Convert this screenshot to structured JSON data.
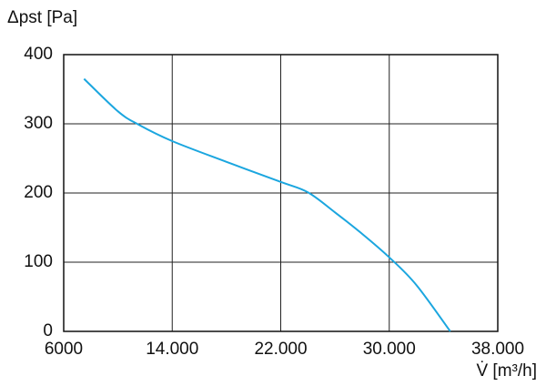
{
  "chart_data": {
    "type": "line",
    "y_label": "Δpst [Pa]",
    "x_label": "V̇ [m³/h]",
    "x": [
      7500,
      10000,
      11500,
      14000,
      18000,
      22000,
      24000,
      26000,
      28000,
      30000,
      32000,
      34500
    ],
    "series": [
      {
        "name": "Δpst",
        "color": "#1ba6df",
        "values": [
          365,
          318,
          299,
          275,
          245,
          216,
          201,
          172,
          141,
          107,
          67,
          0
        ]
      }
    ],
    "xlim": [
      6000,
      38000
    ],
    "xticks": [
      6000,
      {
        "value": 14000,
        "label": "14.000"
      },
      {
        "value": 22000,
        "label": "22.000"
      },
      {
        "value": 30000,
        "label": "30.000"
      },
      {
        "value": 38000,
        "label": "38.000"
      }
    ],
    "ylim": [
      0,
      400
    ],
    "yticks": [
      0,
      100,
      200,
      300,
      400
    ],
    "grid": true
  }
}
